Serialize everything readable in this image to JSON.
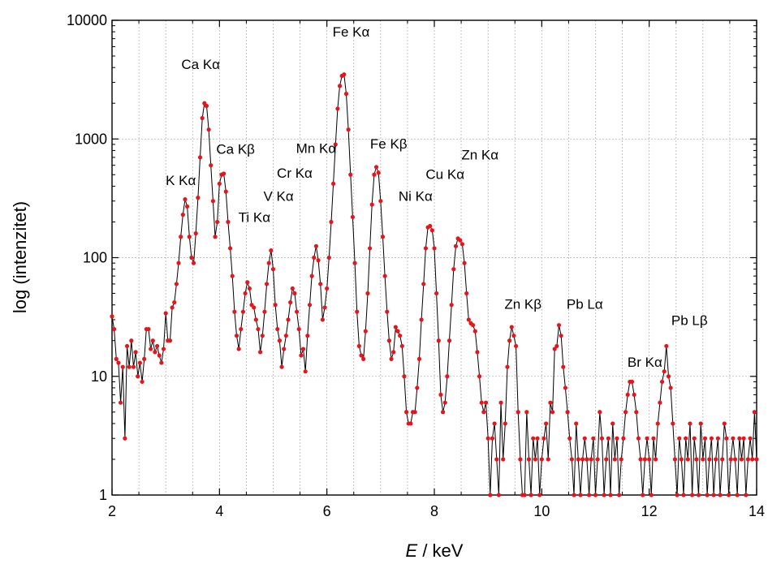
{
  "chart_data": {
    "type": "line",
    "xlabel_var": "E",
    "xlabel_unit": " / keV",
    "ylabel": "log (intenzitet)",
    "xlim": [
      2,
      14
    ],
    "ylim": [
      1,
      10000
    ],
    "y_scale": "log",
    "grid": true,
    "x_ticks": [
      2,
      4,
      6,
      8,
      10,
      12,
      14
    ],
    "y_ticks": [
      1,
      10,
      100,
      1000,
      10000
    ],
    "x_tick_labels": [
      "2",
      "4",
      "6",
      "8",
      "10",
      "12",
      "14"
    ],
    "y_tick_labels": [
      "1",
      "10",
      "100",
      "1000",
      "10000"
    ],
    "series": [
      {
        "marker_color": "#e8141c",
        "line_color": "#000000",
        "points": [
          [
            2.0,
            32
          ],
          [
            2.04,
            25
          ],
          [
            2.08,
            14
          ],
          [
            2.12,
            13
          ],
          [
            2.16,
            6
          ],
          [
            2.2,
            12
          ],
          [
            2.24,
            3
          ],
          [
            2.28,
            18
          ],
          [
            2.32,
            12
          ],
          [
            2.36,
            20
          ],
          [
            2.4,
            12
          ],
          [
            2.44,
            16
          ],
          [
            2.48,
            10
          ],
          [
            2.52,
            13
          ],
          [
            2.56,
            9
          ],
          [
            2.6,
            14
          ],
          [
            2.64,
            25
          ],
          [
            2.68,
            25
          ],
          [
            2.72,
            17
          ],
          [
            2.76,
            20
          ],
          [
            2.8,
            16
          ],
          [
            2.84,
            18
          ],
          [
            2.88,
            15
          ],
          [
            2.92,
            13
          ],
          [
            2.96,
            17
          ],
          [
            3.0,
            34
          ],
          [
            3.04,
            20
          ],
          [
            3.08,
            20
          ],
          [
            3.12,
            38
          ],
          [
            3.16,
            42
          ],
          [
            3.2,
            60
          ],
          [
            3.24,
            90
          ],
          [
            3.28,
            150
          ],
          [
            3.32,
            230
          ],
          [
            3.36,
            310
          ],
          [
            3.4,
            270
          ],
          [
            3.44,
            150
          ],
          [
            3.48,
            100
          ],
          [
            3.52,
            90
          ],
          [
            3.56,
            160
          ],
          [
            3.6,
            320
          ],
          [
            3.64,
            700
          ],
          [
            3.68,
            1500
          ],
          [
            3.72,
            2000
          ],
          [
            3.76,
            1900
          ],
          [
            3.8,
            1200
          ],
          [
            3.84,
            600
          ],
          [
            3.88,
            300
          ],
          [
            3.92,
            150
          ],
          [
            3.96,
            200
          ],
          [
            4.0,
            420
          ],
          [
            4.04,
            500
          ],
          [
            4.08,
            510
          ],
          [
            4.12,
            360
          ],
          [
            4.16,
            200
          ],
          [
            4.2,
            120
          ],
          [
            4.24,
            70
          ],
          [
            4.28,
            35
          ],
          [
            4.32,
            22
          ],
          [
            4.36,
            17
          ],
          [
            4.4,
            25
          ],
          [
            4.44,
            35
          ],
          [
            4.48,
            50
          ],
          [
            4.52,
            62
          ],
          [
            4.56,
            55
          ],
          [
            4.6,
            40
          ],
          [
            4.64,
            38
          ],
          [
            4.68,
            30
          ],
          [
            4.72,
            25
          ],
          [
            4.76,
            16
          ],
          [
            4.8,
            22
          ],
          [
            4.84,
            35
          ],
          [
            4.88,
            60
          ],
          [
            4.92,
            90
          ],
          [
            4.96,
            115
          ],
          [
            5.0,
            80
          ],
          [
            5.04,
            40
          ],
          [
            5.08,
            25
          ],
          [
            5.12,
            20
          ],
          [
            5.16,
            12
          ],
          [
            5.2,
            17
          ],
          [
            5.24,
            22
          ],
          [
            5.28,
            30
          ],
          [
            5.32,
            42
          ],
          [
            5.36,
            55
          ],
          [
            5.4,
            50
          ],
          [
            5.44,
            35
          ],
          [
            5.48,
            25
          ],
          [
            5.52,
            15
          ],
          [
            5.56,
            17
          ],
          [
            5.6,
            11
          ],
          [
            5.64,
            22
          ],
          [
            5.68,
            40
          ],
          [
            5.72,
            70
          ],
          [
            5.76,
            100
          ],
          [
            5.8,
            125
          ],
          [
            5.84,
            95
          ],
          [
            5.88,
            60
          ],
          [
            5.92,
            30
          ],
          [
            5.96,
            38
          ],
          [
            6.0,
            55
          ],
          [
            6.04,
            100
          ],
          [
            6.08,
            200
          ],
          [
            6.12,
            420
          ],
          [
            6.16,
            900
          ],
          [
            6.2,
            1800
          ],
          [
            6.24,
            2800
          ],
          [
            6.28,
            3400
          ],
          [
            6.32,
            3500
          ],
          [
            6.36,
            2400
          ],
          [
            6.4,
            1200
          ],
          [
            6.44,
            500
          ],
          [
            6.48,
            220
          ],
          [
            6.52,
            90
          ],
          [
            6.56,
            35
          ],
          [
            6.6,
            18
          ],
          [
            6.64,
            15
          ],
          [
            6.68,
            14
          ],
          [
            6.72,
            24
          ],
          [
            6.76,
            50
          ],
          [
            6.8,
            120
          ],
          [
            6.84,
            280
          ],
          [
            6.88,
            500
          ],
          [
            6.92,
            580
          ],
          [
            6.96,
            520
          ],
          [
            7.0,
            300
          ],
          [
            7.04,
            150
          ],
          [
            7.08,
            70
          ],
          [
            7.12,
            35
          ],
          [
            7.16,
            20
          ],
          [
            7.2,
            14
          ],
          [
            7.24,
            16
          ],
          [
            7.28,
            26
          ],
          [
            7.32,
            24
          ],
          [
            7.36,
            22
          ],
          [
            7.4,
            18
          ],
          [
            7.44,
            10
          ],
          [
            7.48,
            5
          ],
          [
            7.52,
            4
          ],
          [
            7.56,
            4
          ],
          [
            7.6,
            5
          ],
          [
            7.64,
            5
          ],
          [
            7.68,
            8
          ],
          [
            7.72,
            14
          ],
          [
            7.76,
            30
          ],
          [
            7.8,
            60
          ],
          [
            7.84,
            120
          ],
          [
            7.88,
            180
          ],
          [
            7.92,
            185
          ],
          [
            7.96,
            170
          ],
          [
            8.0,
            120
          ],
          [
            8.04,
            50
          ],
          [
            8.08,
            20
          ],
          [
            8.12,
            7
          ],
          [
            8.16,
            5
          ],
          [
            8.2,
            6
          ],
          [
            8.24,
            10
          ],
          [
            8.28,
            20
          ],
          [
            8.32,
            40
          ],
          [
            8.36,
            80
          ],
          [
            8.4,
            125
          ],
          [
            8.44,
            145
          ],
          [
            8.48,
            140
          ],
          [
            8.52,
            130
          ],
          [
            8.56,
            90
          ],
          [
            8.6,
            50
          ],
          [
            8.64,
            30
          ],
          [
            8.68,
            28
          ],
          [
            8.72,
            27
          ],
          [
            8.76,
            24
          ],
          [
            8.8,
            16
          ],
          [
            8.84,
            10
          ],
          [
            8.88,
            6
          ],
          [
            8.92,
            5
          ],
          [
            8.96,
            6
          ],
          [
            9.0,
            3
          ],
          [
            9.04,
            1
          ],
          [
            9.08,
            3
          ],
          [
            9.12,
            4
          ],
          [
            9.16,
            2
          ],
          [
            9.2,
            1
          ],
          [
            9.24,
            6
          ],
          [
            9.28,
            2
          ],
          [
            9.32,
            4
          ],
          [
            9.36,
            12
          ],
          [
            9.4,
            20
          ],
          [
            9.44,
            26
          ],
          [
            9.48,
            22
          ],
          [
            9.52,
            18
          ],
          [
            9.56,
            5
          ],
          [
            9.6,
            2
          ],
          [
            9.64,
            1
          ],
          [
            9.68,
            1
          ],
          [
            9.72,
            5
          ],
          [
            9.76,
            2
          ],
          [
            9.8,
            1
          ],
          [
            9.84,
            3
          ],
          [
            9.88,
            2
          ],
          [
            9.92,
            3
          ],
          [
            9.96,
            1
          ],
          [
            10.0,
            2
          ],
          [
            10.04,
            3
          ],
          [
            10.08,
            4
          ],
          [
            10.12,
            2
          ],
          [
            10.16,
            6
          ],
          [
            10.2,
            5
          ],
          [
            10.24,
            17
          ],
          [
            10.28,
            18
          ],
          [
            10.32,
            27
          ],
          [
            10.36,
            22
          ],
          [
            10.4,
            12
          ],
          [
            10.44,
            8
          ],
          [
            10.48,
            5
          ],
          [
            10.52,
            3
          ],
          [
            10.56,
            2
          ],
          [
            10.6,
            1
          ],
          [
            10.64,
            4
          ],
          [
            10.68,
            2
          ],
          [
            10.72,
            1
          ],
          [
            10.76,
            2
          ],
          [
            10.8,
            3
          ],
          [
            10.84,
            2
          ],
          [
            10.88,
            1
          ],
          [
            10.92,
            2
          ],
          [
            10.96,
            3
          ],
          [
            11.0,
            1
          ],
          [
            11.04,
            2
          ],
          [
            11.08,
            5
          ],
          [
            11.12,
            3
          ],
          [
            11.16,
            1
          ],
          [
            11.2,
            2
          ],
          [
            11.24,
            3
          ],
          [
            11.28,
            1
          ],
          [
            11.32,
            4
          ],
          [
            11.36,
            2
          ],
          [
            11.4,
            3
          ],
          [
            11.44,
            1
          ],
          [
            11.48,
            2
          ],
          [
            11.52,
            3
          ],
          [
            11.56,
            5
          ],
          [
            11.6,
            7
          ],
          [
            11.64,
            9
          ],
          [
            11.68,
            9
          ],
          [
            11.72,
            7
          ],
          [
            11.76,
            5
          ],
          [
            11.8,
            3
          ],
          [
            11.84,
            2
          ],
          [
            11.88,
            1
          ],
          [
            11.92,
            2
          ],
          [
            11.96,
            3
          ],
          [
            12.0,
            2
          ],
          [
            12.04,
            1
          ],
          [
            12.08,
            3
          ],
          [
            12.12,
            2
          ],
          [
            12.16,
            4
          ],
          [
            12.2,
            6
          ],
          [
            12.24,
            9
          ],
          [
            12.28,
            11
          ],
          [
            12.32,
            18
          ],
          [
            12.36,
            10
          ],
          [
            12.4,
            8
          ],
          [
            12.44,
            4
          ],
          [
            12.48,
            2
          ],
          [
            12.52,
            1
          ],
          [
            12.56,
            3
          ],
          [
            12.6,
            2
          ],
          [
            12.64,
            1
          ],
          [
            12.68,
            3
          ],
          [
            12.72,
            2
          ],
          [
            12.76,
            4
          ],
          [
            12.8,
            1
          ],
          [
            12.84,
            3
          ],
          [
            12.88,
            2
          ],
          [
            12.92,
            1
          ],
          [
            12.96,
            4
          ],
          [
            13.0,
            2
          ],
          [
            13.04,
            3
          ],
          [
            13.08,
            1
          ],
          [
            13.12,
            2
          ],
          [
            13.16,
            3
          ],
          [
            13.2,
            1
          ],
          [
            13.24,
            2
          ],
          [
            13.28,
            3
          ],
          [
            13.32,
            1
          ],
          [
            13.36,
            2
          ],
          [
            13.4,
            4
          ],
          [
            13.44,
            3
          ],
          [
            13.48,
            1
          ],
          [
            13.52,
            2
          ],
          [
            13.56,
            3
          ],
          [
            13.6,
            2
          ],
          [
            13.64,
            1
          ],
          [
            13.68,
            3
          ],
          [
            13.72,
            2
          ],
          [
            13.76,
            3
          ],
          [
            13.8,
            1
          ],
          [
            13.84,
            2
          ],
          [
            13.88,
            3
          ],
          [
            13.92,
            2
          ],
          [
            13.96,
            5
          ],
          [
            14.0,
            2
          ]
        ]
      }
    ],
    "annotations": [
      {
        "text": "K Kα",
        "x": 3.28,
        "y": 410
      },
      {
        "text": "Ca Kα",
        "x": 3.65,
        "y": 3900
      },
      {
        "text": "Ca Kβ",
        "x": 4.3,
        "y": 750
      },
      {
        "text": "Ti Kα",
        "x": 4.65,
        "y": 200
      },
      {
        "text": "V Kα",
        "x": 5.1,
        "y": 300
      },
      {
        "text": "Cr Kα",
        "x": 5.4,
        "y": 470
      },
      {
        "text": "Mn Kα",
        "x": 5.8,
        "y": 760
      },
      {
        "text": "Fe Kα",
        "x": 6.45,
        "y": 7300
      },
      {
        "text": "Fe Kβ",
        "x": 7.15,
        "y": 830
      },
      {
        "text": "Ni Kα",
        "x": 7.65,
        "y": 300
      },
      {
        "text": "Cu Kα",
        "x": 8.2,
        "y": 460
      },
      {
        "text": "Zn Kα",
        "x": 8.85,
        "y": 670
      },
      {
        "text": "Zn Kβ",
        "x": 9.65,
        "y": 37
      },
      {
        "text": "Pb Lα",
        "x": 10.8,
        "y": 37
      },
      {
        "text": "Br Kα",
        "x": 11.92,
        "y": 12
      },
      {
        "text": "Pb Lβ",
        "x": 12.75,
        "y": 27
      }
    ]
  }
}
